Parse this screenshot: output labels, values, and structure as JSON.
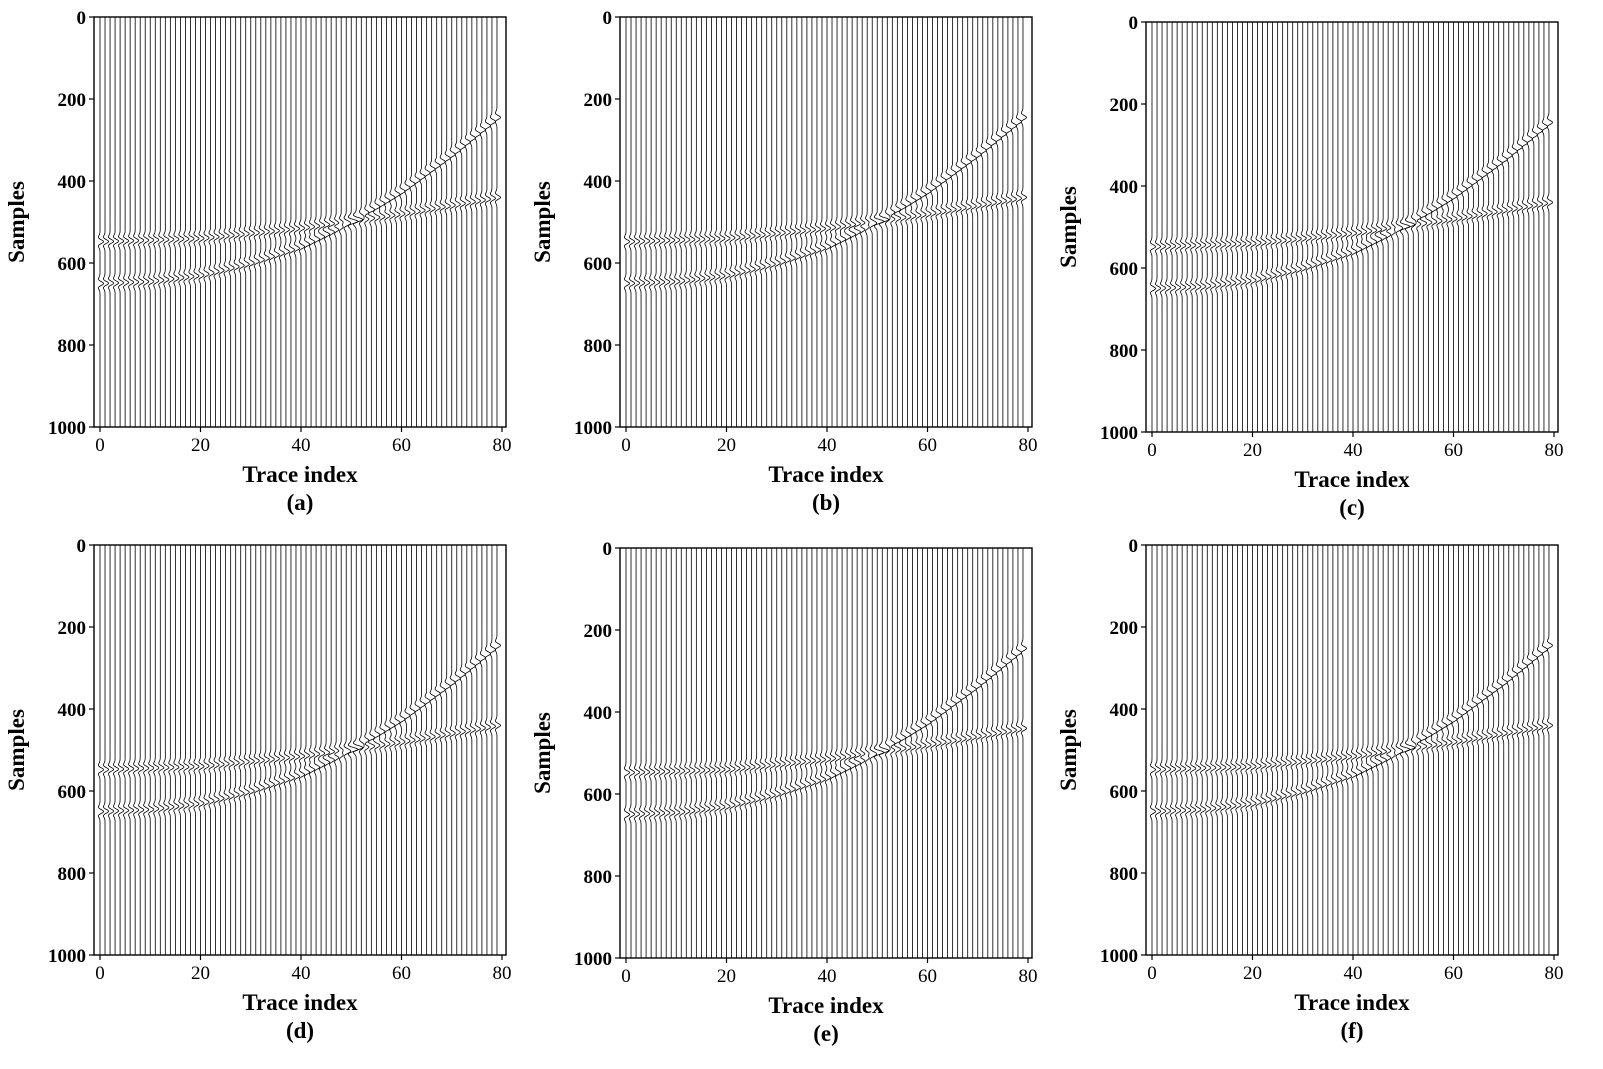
{
  "figure": {
    "panels": [
      {
        "label": "(a)",
        "xlabel": "Trace index",
        "ylabel": "Samples",
        "variant": "clean",
        "chart_data": {
          "type": "seismic-wiggle",
          "xlim": [
            0,
            80
          ],
          "ylim": [
            1000,
            0
          ],
          "xticks": [
            "0",
            "20",
            "40",
            "60",
            "80"
          ],
          "yticks": [
            "0",
            "200",
            "400",
            "600",
            "800",
            "1000"
          ],
          "trace_count": 80,
          "events": [
            {
              "name": "event-1",
              "trace": [
                0,
                10,
                20,
                30,
                40,
                50,
                60,
                70,
                79
              ],
              "sample": [
                650,
                645,
                630,
                600,
                560,
                500,
                425,
                335,
                245
              ]
            },
            {
              "name": "event-2",
              "trace": [
                0,
                20,
                40,
                60,
                79
              ],
              "sample": [
                548,
                540,
                515,
                480,
                440
              ]
            }
          ],
          "noise": "none"
        }
      },
      {
        "label": "(b)",
        "xlabel": "Trace index",
        "ylabel": "Samples",
        "variant": "random-noise",
        "chart_data": {
          "type": "seismic-wiggle",
          "xlim": [
            0,
            80
          ],
          "ylim": [
            1000,
            0
          ],
          "xticks": [
            "0",
            "20",
            "40",
            "60",
            "80"
          ],
          "yticks": [
            "0",
            "200",
            "400",
            "600",
            "800",
            "1000"
          ],
          "trace_count": 80,
          "events": [
            {
              "name": "event-1",
              "trace": [
                0,
                10,
                20,
                30,
                40,
                50,
                60,
                70,
                79
              ],
              "sample": [
                650,
                645,
                630,
                600,
                560,
                500,
                425,
                335,
                245
              ]
            },
            {
              "name": "event-2",
              "trace": [
                0,
                20,
                40,
                60,
                79
              ],
              "sample": [
                548,
                540,
                515,
                480,
                440
              ]
            }
          ],
          "noise": "strong-random"
        }
      },
      {
        "label": "(c)",
        "xlabel": "Trace index",
        "ylabel": "Samples",
        "variant": "erratic-noise",
        "chart_data": {
          "type": "seismic-wiggle",
          "xlim": [
            0,
            80
          ],
          "ylim": [
            1000,
            0
          ],
          "xticks": [
            "0",
            "20",
            "40",
            "60",
            "80"
          ],
          "yticks": [
            "0",
            "200",
            "400",
            "600",
            "800",
            "1000"
          ],
          "trace_count": 80,
          "events": [
            {
              "name": "event-1",
              "trace": [
                0,
                10,
                20,
                30,
                40,
                50,
                60,
                70,
                79
              ],
              "sample": [
                650,
                645,
                630,
                600,
                560,
                500,
                425,
                335,
                245
              ]
            },
            {
              "name": "event-2",
              "trace": [
                0,
                20,
                40,
                60,
                79
              ],
              "sample": [
                548,
                540,
                515,
                480,
                440
              ]
            }
          ],
          "noise": "moderate-with-spikes"
        }
      },
      {
        "label": "(d)",
        "xlabel": "Trace index",
        "ylabel": "Samples",
        "variant": "residual-spikes",
        "chart_data": {
          "type": "seismic-wiggle",
          "xlim": [
            0,
            80
          ],
          "ylim": [
            1000,
            0
          ],
          "xticks": [
            "0",
            "20",
            "40",
            "60",
            "80"
          ],
          "yticks": [
            "0",
            "200",
            "400",
            "600",
            "800",
            "1000"
          ],
          "trace_count": 80,
          "events": [
            {
              "name": "event-1",
              "trace": [
                0,
                10,
                20,
                30,
                40,
                50,
                60,
                70,
                79
              ],
              "sample": [
                650,
                645,
                630,
                600,
                560,
                500,
                425,
                335,
                245
              ]
            },
            {
              "name": "event-2",
              "trace": [
                0,
                20,
                40,
                60,
                79
              ],
              "sample": [
                548,
                540,
                515,
                480,
                440
              ]
            }
          ],
          "noise": "sparse-spikes"
        }
      },
      {
        "label": "(e)",
        "xlabel": "Trace index",
        "ylabel": "Samples",
        "variant": "residual-light",
        "chart_data": {
          "type": "seismic-wiggle",
          "xlim": [
            0,
            80
          ],
          "ylim": [
            1000,
            0
          ],
          "xticks": [
            "0",
            "20",
            "40",
            "60",
            "80"
          ],
          "yticks": [
            "0",
            "200",
            "400",
            "600",
            "800",
            "1000"
          ],
          "trace_count": 80,
          "events": [
            {
              "name": "event-1",
              "trace": [
                0,
                10,
                20,
                30,
                40,
                50,
                60,
                70,
                79
              ],
              "sample": [
                650,
                645,
                630,
                600,
                560,
                500,
                425,
                335,
                245
              ]
            },
            {
              "name": "event-2",
              "trace": [
                0,
                20,
                40,
                60,
                79
              ],
              "sample": [
                548,
                540,
                515,
                480,
                440
              ]
            }
          ],
          "noise": "weak-residual"
        }
      },
      {
        "label": "(f)",
        "xlabel": "Trace index",
        "ylabel": "Samples",
        "variant": "clean",
        "chart_data": {
          "type": "seismic-wiggle",
          "xlim": [
            0,
            80
          ],
          "ylim": [
            1000,
            0
          ],
          "xticks": [
            "0",
            "20",
            "40",
            "60",
            "80"
          ],
          "yticks": [
            "0",
            "200",
            "400",
            "600",
            "800",
            "1000"
          ],
          "trace_count": 80,
          "events": [
            {
              "name": "event-1",
              "trace": [
                0,
                10,
                20,
                30,
                40,
                50,
                60,
                70,
                79
              ],
              "sample": [
                650,
                645,
                630,
                600,
                560,
                500,
                425,
                335,
                245
              ]
            },
            {
              "name": "event-2",
              "trace": [
                0,
                20,
                40,
                60,
                79
              ],
              "sample": [
                548,
                540,
                515,
                480,
                440
              ]
            }
          ],
          "noise": "none"
        }
      }
    ]
  }
}
